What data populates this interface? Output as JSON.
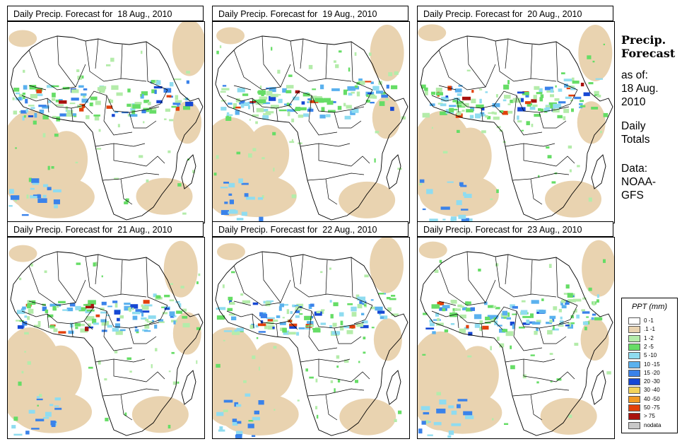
{
  "panels": [
    {
      "title": "Daily Precip. Forecast for  18 Aug., 2010",
      "seed": 11
    },
    {
      "title": "Daily Precip. Forecast for  19 Aug., 2010",
      "seed": 23
    },
    {
      "title": "Daily Precip. Forecast for  20 Aug., 2010",
      "seed": 37
    },
    {
      "title": "Daily Precip. Forecast for  21 Aug., 2010",
      "seed": 41
    },
    {
      "title": "Daily Precip. Forecast for  22 Aug., 2010",
      "seed": 53
    },
    {
      "title": "Daily Precip. Forecast for  23 Aug., 2010",
      "seed": 67
    }
  ],
  "side": {
    "title_line1": "Precip.",
    "title_line2": "Forecast",
    "asof_label": "as of:",
    "date_line1": "18 Aug.",
    "date_line2": "2010",
    "totals_line1": "Daily",
    "totals_line2": "Totals",
    "data_line1": "Data:",
    "data_line2": "NOAA-",
    "data_line3": "GFS"
  },
  "legend": {
    "title": "PPT (mm)",
    "items": [
      {
        "label": "0 -1",
        "color": "#ffffff"
      },
      {
        "label": ".1 -1",
        "color": "#e9d3b0"
      },
      {
        "label": "1 -2",
        "color": "#b4ecaa"
      },
      {
        "label": "2 -5",
        "color": "#66dd66"
      },
      {
        "label": "5 -10",
        "color": "#8fdcf0"
      },
      {
        "label": "10 -15",
        "color": "#5ab1ee"
      },
      {
        "label": "15 -20",
        "color": "#3a82ea"
      },
      {
        "label": "20 -30",
        "color": "#1648d4"
      },
      {
        "label": "30 -40",
        "color": "#f3d35a"
      },
      {
        "label": "40 -50",
        "color": "#f29a24"
      },
      {
        "label": "50 -75",
        "color": "#e2400a"
      },
      {
        "label": "> 75",
        "color": "#a8120e"
      },
      {
        "label": "nodata",
        "color": "#c8c8c8"
      }
    ]
  }
}
